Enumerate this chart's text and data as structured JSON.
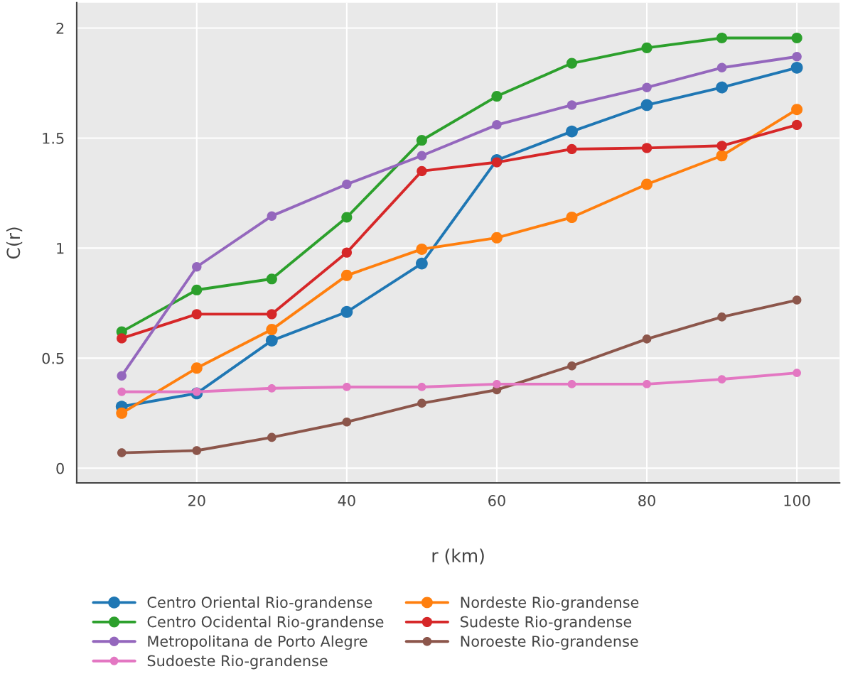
{
  "chart_data": {
    "type": "line",
    "xlabel": "r (km)",
    "ylabel": "C(r)",
    "x": [
      10,
      20,
      30,
      40,
      50,
      60,
      70,
      80,
      90,
      100
    ],
    "xlim": [
      4,
      105.7
    ],
    "ylim": [
      -0.067,
      2.115
    ],
    "xticks": [
      20,
      40,
      60,
      80,
      100
    ],
    "yticks": [
      0,
      0.5,
      1,
      1.5,
      2
    ],
    "grid": true,
    "legend": "bottom",
    "marker": "circle",
    "line_style": "solid",
    "series": [
      {
        "name": "Centro Oriental Rio-grandense",
        "color": "#1f77b4",
        "values": [
          0.28,
          0.34,
          0.58,
          0.71,
          0.93,
          1.4,
          1.53,
          1.65,
          1.73,
          1.82
        ]
      },
      {
        "name": "Nordeste Rio-grandense",
        "color": "#ff7f0e",
        "values": [
          0.25,
          0.455,
          0.63,
          0.876,
          0.995,
          1.047,
          1.14,
          1.29,
          1.42,
          1.63
        ]
      },
      {
        "name": "Centro Ocidental Rio-grandense",
        "color": "#2ca02c",
        "values": [
          0.62,
          0.81,
          0.86,
          1.14,
          1.49,
          1.69,
          1.84,
          1.91,
          1.955,
          1.955
        ]
      },
      {
        "name": "Sudeste Rio-grandense",
        "color": "#d62728",
        "values": [
          0.59,
          0.7,
          0.7,
          0.98,
          1.35,
          1.39,
          1.45,
          1.455,
          1.465,
          1.56
        ]
      },
      {
        "name": "Metropolitana de Porto Alegre",
        "color": "#9467bd",
        "values": [
          0.42,
          0.915,
          1.146,
          1.29,
          1.42,
          1.56,
          1.65,
          1.73,
          1.82,
          1.87
        ]
      },
      {
        "name": "Noroeste Rio-grandense",
        "color": "#8c564b",
        "values": [
          0.07,
          0.08,
          0.14,
          0.21,
          0.295,
          0.356,
          0.465,
          0.587,
          0.687,
          0.764
        ]
      },
      {
        "name": "Sudoeste Rio-grandense",
        "color": "#e377c2",
        "values": [
          0.347,
          0.347,
          0.363,
          0.369,
          0.369,
          0.382,
          0.382,
          0.382,
          0.404,
          0.433
        ]
      }
    ]
  }
}
